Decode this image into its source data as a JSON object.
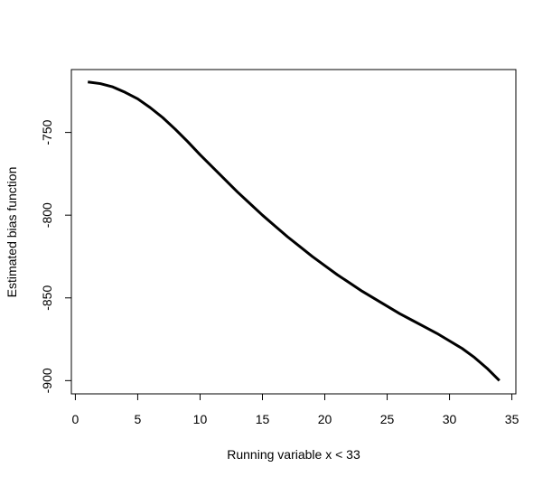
{
  "chart_data": {
    "type": "line",
    "x_label": "Running variable x < 33",
    "y_label": "Estimated bias function",
    "x": [
      1,
      2,
      3,
      4,
      5,
      6,
      7,
      8,
      9,
      10,
      11,
      12,
      13,
      14,
      15,
      16,
      17,
      18,
      19,
      20,
      21,
      22,
      23,
      24,
      25,
      26,
      27,
      28,
      29,
      30,
      31,
      32,
      33,
      34
    ],
    "series": [
      {
        "color": "#000000",
        "values": [
          -719.5,
          -720.5,
          -722.5,
          -725.8,
          -729.7,
          -735,
          -741,
          -748,
          -755.5,
          -763.5,
          -771,
          -778.5,
          -786,
          -793,
          -800,
          -806.5,
          -813,
          -819,
          -825,
          -830.5,
          -836,
          -841,
          -846,
          -850.5,
          -855,
          -859.5,
          -863.5,
          -867.5,
          -871.5,
          -876,
          -880.5,
          -886,
          -892.5,
          -900
        ]
      }
    ],
    "xlim": [
      -0.32,
      35.32
    ],
    "xticks": [
      0,
      5,
      10,
      15,
      20,
      25,
      30,
      35
    ],
    "ylim": [
      -908,
      -712
    ],
    "yticks": [
      -900,
      -850,
      -800,
      -750
    ]
  }
}
